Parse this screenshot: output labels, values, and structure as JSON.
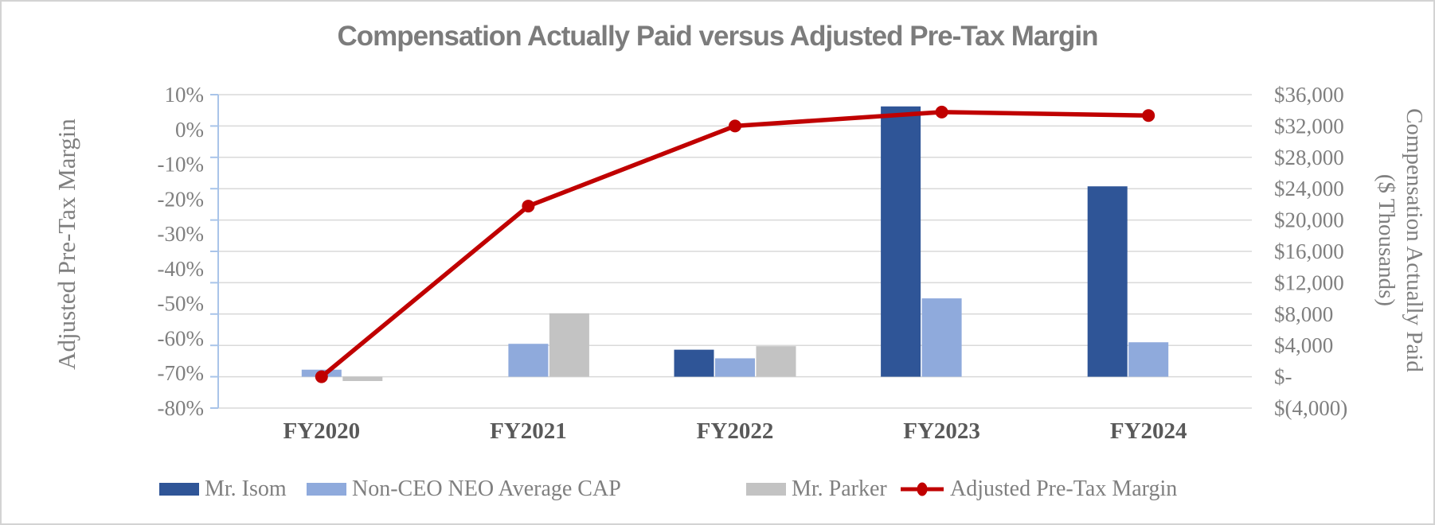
{
  "chart": {
    "title": "Compensation Actually Paid versus Adjusted Pre-Tax Margin",
    "left_axis": {
      "title": "Adjusted Pre-Tax Margin",
      "tick_labels": [
        "10%",
        "0%",
        "-10%",
        "-20%",
        "-30%",
        "-40%",
        "-50%",
        "-60%",
        "-70%",
        "-80%"
      ]
    },
    "right_axis": {
      "title_line1": "Compensation Actually Paid",
      "title_line2": "($ Thousands)",
      "tick_labels": [
        "$36,000",
        "$32,000",
        "$28,000",
        "$24,000",
        "$20,000",
        "$16,000",
        "$12,000",
        "$8,000",
        "$4,000",
        "$-",
        "$(4,000)"
      ]
    },
    "x_axis": {
      "category_labels": [
        "FY2020",
        "FY2021",
        "FY2022",
        "FY2023",
        "FY2024"
      ]
    },
    "legend": {
      "items": [
        {
          "label": "Mr. Isom",
          "swatch": "bar",
          "color": "#2F5597"
        },
        {
          "label": "Non-CEO NEO Average CAP",
          "swatch": "bar",
          "color": "#8FAADC"
        },
        {
          "label": "Mr. Parker",
          "swatch": "bar",
          "color": "#C3C3C3"
        },
        {
          "label": "Adjusted Pre-Tax Margin",
          "swatch": "line-marker",
          "color": "#C00000"
        }
      ]
    }
  },
  "chart_data": {
    "type": "combo-bar-line",
    "categories": [
      "FY2020",
      "FY2021",
      "FY2022",
      "FY2023",
      "FY2024"
    ],
    "series": [
      {
        "name": "Mr. Isom",
        "type": "bar",
        "axis": "right",
        "color": "#2F5597",
        "values": [
          null,
          null,
          3450,
          34500,
          24300
        ]
      },
      {
        "name": "Non-CEO NEO Average CAP",
        "type": "bar",
        "axis": "right",
        "color": "#8FAADC",
        "values": [
          900,
          4200,
          2350,
          10000,
          4400
        ]
      },
      {
        "name": "Mr. Parker",
        "type": "bar",
        "axis": "right",
        "color": "#C3C3C3",
        "values": [
          -550,
          8100,
          3900,
          null,
          null
        ]
      },
      {
        "name": "Adjusted Pre-Tax Margin",
        "type": "line",
        "axis": "left",
        "color": "#C00000",
        "values": [
          -71,
          -22,
          1,
          5,
          4
        ]
      }
    ],
    "title": "Compensation Actually Paid versus Adjusted Pre-Tax Margin",
    "xlabel": "",
    "ylabel_left": "Adjusted Pre-Tax Margin",
    "ylabel_right": "Compensation Actually Paid ($ Thousands)",
    "left_ylim": [
      -80,
      10
    ],
    "left_tick_step": 10,
    "right_ylim": [
      -4000,
      36000
    ],
    "right_tick_step": 4000,
    "right_unit": "$ thousands",
    "grid": "horizontal",
    "legend_position": "bottom"
  },
  "colors": {
    "bar_dark_blue": "#2F5597",
    "bar_light_blue": "#8FAADC",
    "bar_gray": "#C3C3C3",
    "line_red": "#C00000",
    "gridline": "#D9D9D9",
    "axis_line": "#A9C4E9",
    "title_text": "#7C7C7C",
    "tick_text": "#7F7F7F",
    "category_text": "#595959"
  }
}
